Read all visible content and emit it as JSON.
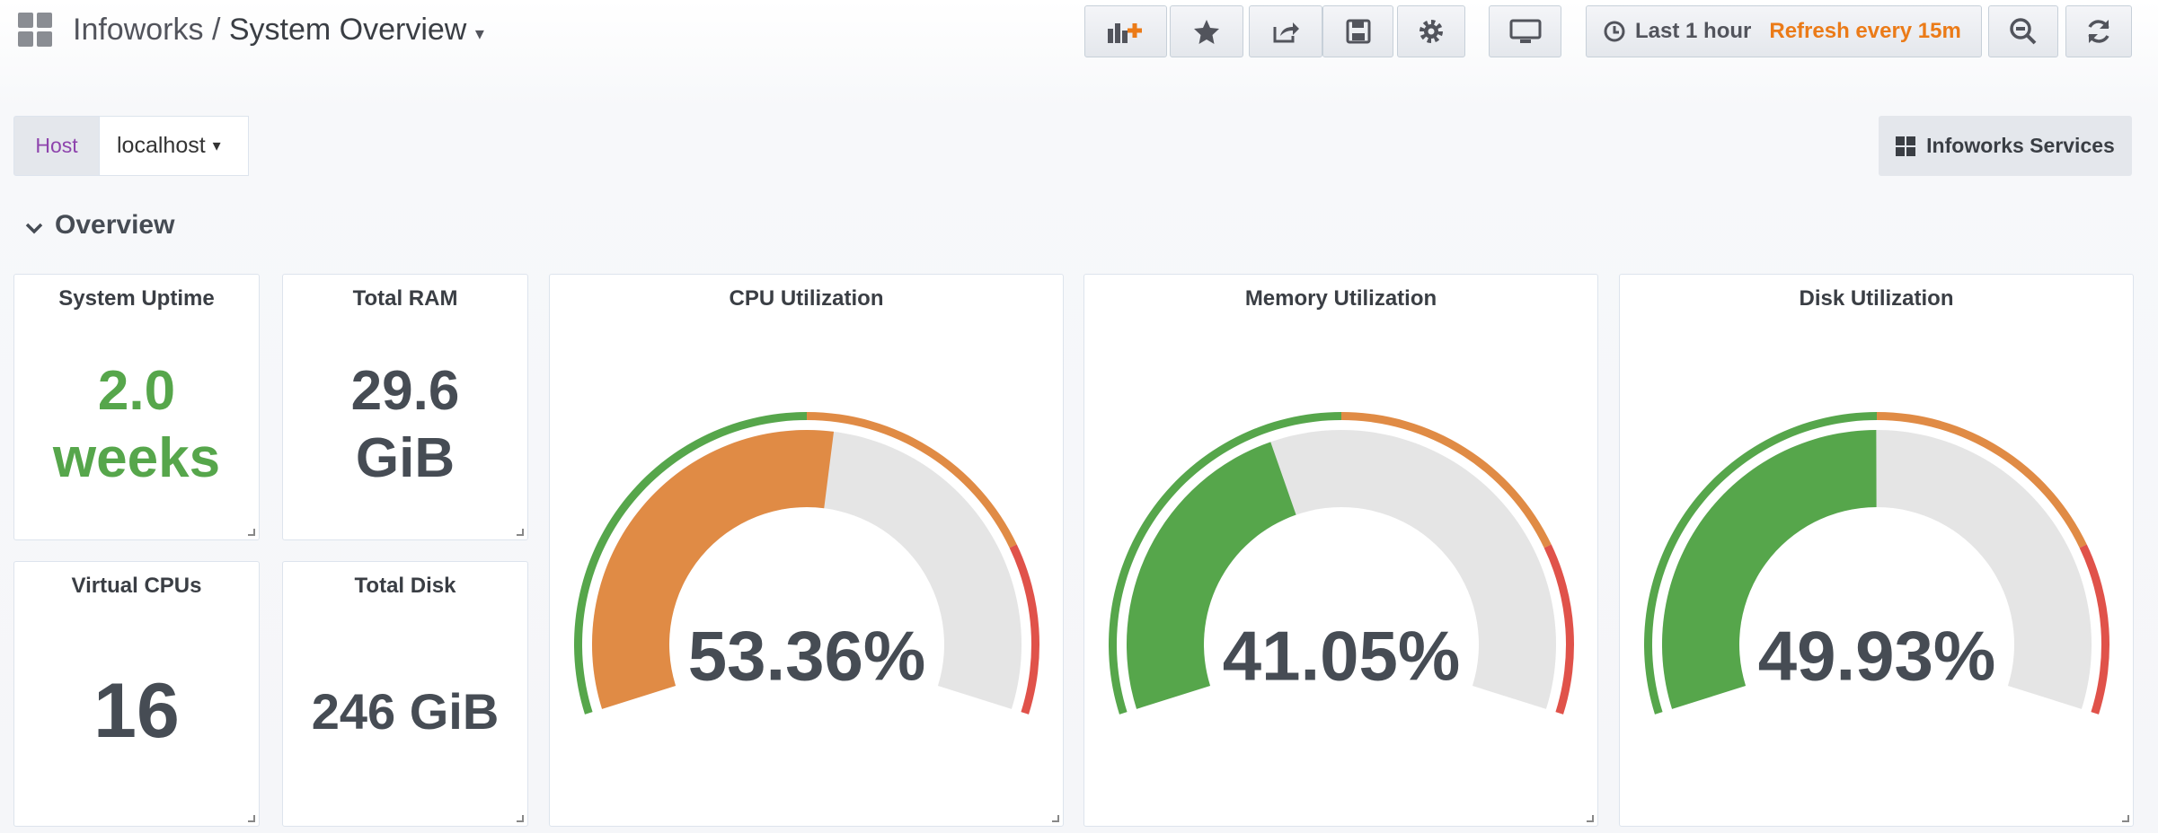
{
  "header": {
    "breadcrumb": "Infoworks",
    "separator": "/",
    "title": "System Overview"
  },
  "toolbar": {
    "time_range": "Last 1 hour",
    "refresh": "Refresh every 15m"
  },
  "variables": {
    "label": "Host",
    "value": "localhost"
  },
  "links": {
    "services": "Infoworks Services"
  },
  "row": {
    "title": "Overview"
  },
  "stats": [
    {
      "title": "System Uptime",
      "value": "2.0 weeks",
      "color": "#56a64b"
    },
    {
      "title": "Total RAM",
      "value": "29.6 GiB",
      "color": "#464c54"
    },
    {
      "title": "Virtual CPUs",
      "value": "16",
      "color": "#464c54"
    },
    {
      "title": "Total Disk",
      "value": "246 GiB",
      "color": "#464c54"
    }
  ],
  "gauges": [
    {
      "title": "CPU Utilization",
      "value": 53.36,
      "value_label": "53.36%",
      "min": 0,
      "max": 100,
      "thresholds": [
        50,
        80
      ],
      "colors": [
        "#56a64b",
        "#e08b45",
        "#e0524a"
      ]
    },
    {
      "title": "Memory Utilization",
      "value": 41.05,
      "value_label": "41.05%",
      "min": 0,
      "max": 100,
      "thresholds": [
        50,
        80
      ],
      "colors": [
        "#56a64b",
        "#e08b45",
        "#e0524a"
      ]
    },
    {
      "title": "Disk Utilization",
      "value": 49.93,
      "value_label": "49.93%",
      "min": 0,
      "max": 100,
      "thresholds": [
        50,
        80
      ],
      "colors": [
        "#56a64b",
        "#e08b45",
        "#e0524a"
      ]
    }
  ]
}
